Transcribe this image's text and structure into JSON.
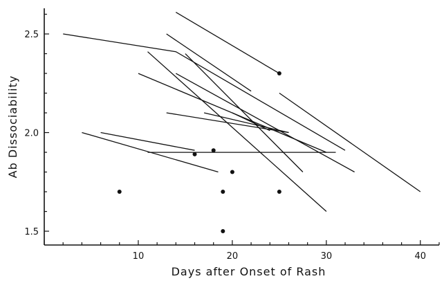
{
  "chart_data": {
    "type": "line",
    "title": "",
    "xlabel": "Days after Onset of Rash",
    "ylabel": "Ab Dissociability",
    "xlim": [
      0,
      42
    ],
    "ylim": [
      1.43,
      2.63
    ],
    "x_ticks": [
      10,
      20,
      30,
      40
    ],
    "y_ticks": [
      1.5,
      2.0,
      2.5
    ],
    "x_tick_labels": [
      "10",
      "20",
      "30",
      "40"
    ],
    "y_tick_labels": [
      "1.5",
      "2.0",
      "2.5"
    ],
    "grid": false,
    "legend": "none",
    "line_color": "#111111",
    "segments": [
      {
        "points": [
          [
            2,
            2.5
          ],
          [
            14,
            2.41
          ],
          [
            32,
            1.91
          ]
        ]
      },
      {
        "points": [
          [
            14,
            2.61
          ],
          [
            25,
            2.3
          ]
        ]
      },
      {
        "points": [
          [
            13,
            2.5
          ],
          [
            22,
            2.21
          ]
        ]
      },
      {
        "points": [
          [
            25,
            2.2
          ],
          [
            40,
            1.7
          ]
        ]
      },
      {
        "points": [
          [
            11,
            2.41
          ],
          [
            30,
            1.6
          ]
        ]
      },
      {
        "points": [
          [
            15,
            2.4
          ],
          [
            27.5,
            1.8
          ]
        ]
      },
      {
        "points": [
          [
            10,
            2.3
          ],
          [
            30,
            1.9
          ]
        ]
      },
      {
        "points": [
          [
            14,
            2.3
          ],
          [
            33,
            1.8
          ]
        ]
      },
      {
        "points": [
          [
            13,
            2.1
          ],
          [
            26,
            2.0
          ]
        ]
      },
      {
        "points": [
          [
            17,
            2.1
          ],
          [
            26,
            2.0
          ]
        ]
      },
      {
        "points": [
          [
            20,
            2.1
          ],
          [
            24,
            2.01
          ]
        ]
      },
      {
        "points": [
          [
            11,
            1.9
          ],
          [
            31,
            1.9
          ]
        ]
      },
      {
        "points": [
          [
            6,
            2.0
          ],
          [
            16,
            1.91
          ]
        ]
      },
      {
        "points": [
          [
            4,
            2.0
          ],
          [
            18.5,
            1.8
          ]
        ]
      }
    ],
    "points": [
      {
        "x": 8,
        "y": 1.7
      },
      {
        "x": 16,
        "y": 1.89
      },
      {
        "x": 18,
        "y": 1.91
      },
      {
        "x": 19,
        "y": 1.7
      },
      {
        "x": 19,
        "y": 1.5
      },
      {
        "x": 20,
        "y": 1.8
      },
      {
        "x": 25,
        "y": 1.7
      },
      {
        "x": 25,
        "y": 2.3
      }
    ]
  }
}
